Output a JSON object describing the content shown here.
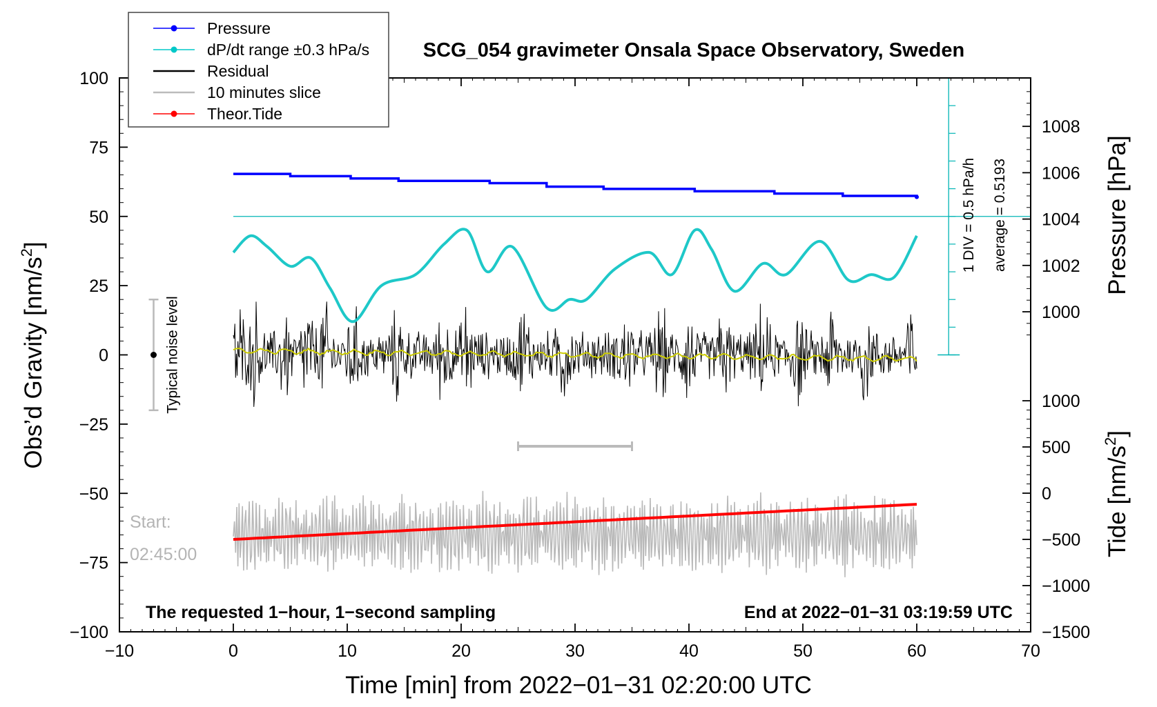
{
  "chart_data": {
    "type": "line",
    "title": "SCG_054 gravimeter Onsala Space Observatory, Sweden",
    "xlabel": "Time [min] from 2022−01−31 02:20:00 UTC",
    "ylabel_left_prefix": "Obs’d Gravity [nm/s",
    "ylabel_left_sup": "2",
    "ylabel_left_suffix": "]",
    "ylabel_right_pressure": "Pressure [hPa]",
    "ylabel_right_tide_prefix": "Tide [nm/s",
    "ylabel_right_tide_sup": "2",
    "ylabel_right_tide_suffix": "]",
    "xlim": [
      -10,
      70
    ],
    "ylim_gravity": [
      -100,
      100
    ],
    "ylim_pressure_shown": [
      1000,
      1008
    ],
    "ylim_tide": [
      -1500,
      1000
    ],
    "x_ticks": [
      {
        "v": -10,
        "l": "−10"
      },
      {
        "v": 0,
        "l": "0"
      },
      {
        "v": 10,
        "l": "10"
      },
      {
        "v": 20,
        "l": "20"
      },
      {
        "v": 30,
        "l": "30"
      },
      {
        "v": 40,
        "l": "40"
      },
      {
        "v": 50,
        "l": "50"
      },
      {
        "v": 60,
        "l": "60"
      },
      {
        "v": 70,
        "l": "70"
      }
    ],
    "gravity_ticks": [
      {
        "v": 100,
        "l": "100"
      },
      {
        "v": 75,
        "l": "75"
      },
      {
        "v": 50,
        "l": "50"
      },
      {
        "v": 25,
        "l": "25"
      },
      {
        "v": 0,
        "l": "0"
      },
      {
        "v": -25,
        "l": "−25"
      },
      {
        "v": -50,
        "l": "−50"
      },
      {
        "v": -75,
        "l": "−75"
      },
      {
        "v": -100,
        "l": "−100"
      }
    ],
    "pressure_ticks": [
      {
        "v": 1008,
        "l": "1008"
      },
      {
        "v": 1006,
        "l": "1006"
      },
      {
        "v": 1004,
        "l": "1004"
      },
      {
        "v": 1002,
        "l": "1002"
      },
      {
        "v": 1000,
        "l": "1000"
      }
    ],
    "tide_ticks": [
      {
        "v": 1000,
        "l": "1000"
      },
      {
        "v": 500,
        "l": "500"
      },
      {
        "v": 0,
        "l": "0"
      },
      {
        "v": -500,
        "l": "−500"
      },
      {
        "v": -1000,
        "l": "−1000"
      },
      {
        "v": -1500,
        "l": "−1500"
      }
    ],
    "legend": [
      {
        "label": "Pressure",
        "color": "#0000ff",
        "marker": true
      },
      {
        "label": "dP/dt range ±0.3 hPa/s",
        "color": "#00c8c8",
        "marker": true
      },
      {
        "label": "Residual",
        "color": "#000000",
        "marker": false
      },
      {
        "label": "10 minutes slice",
        "color": "#bbbbbb",
        "marker": false
      },
      {
        "label": "Theor.Tide",
        "color": "#ff0000",
        "marker": true
      }
    ],
    "legend_position": "top-left",
    "pressure_steps": [
      {
        "t": 0,
        "p": 1005.95
      },
      {
        "t": 5,
        "p": 1005.85
      },
      {
        "t": 10.3,
        "p": 1005.75
      },
      {
        "t": 14.5,
        "p": 1005.65
      },
      {
        "t": 22.5,
        "p": 1005.55
      },
      {
        "t": 27.5,
        "p": 1005.4
      },
      {
        "t": 32.5,
        "p": 1005.3
      },
      {
        "t": 40.5,
        "p": 1005.2
      },
      {
        "t": 47.5,
        "p": 1005.1
      },
      {
        "t": 53.5,
        "p": 1005.0
      },
      {
        "t": 60,
        "p": 1004.95
      }
    ],
    "dpdt_axis": {
      "x": 62.8,
      "top_gravity": 100,
      "bottom_gravity": 0,
      "baseline_gravity": 50
    },
    "dpdt_points": [
      {
        "t": 0,
        "g": 37
      },
      {
        "t": 1.5,
        "g": 43
      },
      {
        "t": 3,
        "g": 39
      },
      {
        "t": 5,
        "g": 32
      },
      {
        "t": 6.8,
        "g": 35
      },
      {
        "t": 8.5,
        "g": 24
      },
      {
        "t": 10.5,
        "g": 12
      },
      {
        "t": 13,
        "g": 25
      },
      {
        "t": 16,
        "g": 29
      },
      {
        "t": 18.5,
        "g": 40
      },
      {
        "t": 20.5,
        "g": 45
      },
      {
        "t": 22.3,
        "g": 30
      },
      {
        "t": 24.5,
        "g": 39
      },
      {
        "t": 27.5,
        "g": 17
      },
      {
        "t": 29.5,
        "g": 20
      },
      {
        "t": 31,
        "g": 20
      },
      {
        "t": 33.5,
        "g": 31
      },
      {
        "t": 36.5,
        "g": 37
      },
      {
        "t": 38.5,
        "g": 29
      },
      {
        "t": 40.5,
        "g": 45
      },
      {
        "t": 42,
        "g": 38
      },
      {
        "t": 44,
        "g": 23
      },
      {
        "t": 46.5,
        "g": 33
      },
      {
        "t": 48.5,
        "g": 29
      },
      {
        "t": 51.5,
        "g": 41
      },
      {
        "t": 54,
        "g": 27
      },
      {
        "t": 56,
        "g": 29
      },
      {
        "t": 58,
        "g": 28
      },
      {
        "t": 60,
        "g": 43
      }
    ],
    "residual": {
      "t_start": 0,
      "t_end": 60,
      "samples": 900,
      "base_amplitude_nm_s2": 10,
      "burst_times_min": [
        0.5,
        2,
        4.5,
        6.5,
        8,
        10.5,
        14.5,
        18.5,
        20.5,
        25.5,
        29,
        34.5,
        37.5,
        40,
        43,
        46.5,
        49.5,
        52.5,
        55.5,
        59.5
      ]
    },
    "residual_smooth": {
      "start": 1.5,
      "end": -1.5,
      "color": "#cccc00"
    },
    "slice": {
      "t_start": 25,
      "t_end": 35,
      "gravity_level": -33,
      "color": "#bbbbbb"
    },
    "slice_trace": {
      "center_gravity": -65,
      "amplitude_nm_s2": 12,
      "samples": 600
    },
    "tide": {
      "t_start": 0,
      "t_end": 60,
      "start_nm_s2": -500,
      "end_nm_s2": -120
    },
    "noise_bar": {
      "x": -7,
      "gravity_top": 20,
      "gravity_bottom": -20,
      "label": "Typical noise level"
    },
    "annotation_pressure_scale": "1 DIV = 0.5 hPa/h",
    "annotation_average": "average = 0.5193",
    "start_label": "Start:",
    "start_time": "02:45:00",
    "footer_left": "The requested 1−hour, 1−second sampling",
    "footer_right": "End at 2022−01−31 03:19:59 UTC"
  }
}
